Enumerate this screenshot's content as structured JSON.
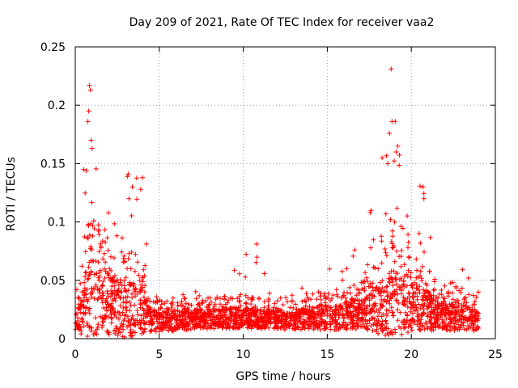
{
  "chart_data": {
    "type": "scatter",
    "title": "Day 209 of 2021, Rate Of TEC Index for receiver vaa2",
    "xlabel": "GPS time / hours",
    "ylabel": "ROTI / TECUs",
    "xlim": [
      0,
      25
    ],
    "ylim": [
      0,
      0.25
    ],
    "x_ticks": [
      0,
      5,
      10,
      15,
      20,
      25
    ],
    "x_tick_labels": [
      "0",
      "5",
      "10",
      "15",
      "20",
      "25"
    ],
    "y_ticks": [
      0,
      0.05,
      0.1,
      0.15,
      0.2,
      0.25
    ],
    "y_tick_labels": [
      "0",
      "0.05",
      "0.1",
      "0.15",
      "0.2",
      "0.25"
    ],
    "grid": true,
    "marker": "+",
    "series": [
      {
        "color": "#ff0000",
        "profile": [
          {
            "x": 0.0,
            "base": 0.015,
            "spread": 0.015,
            "max": 0.03
          },
          {
            "x": 0.5,
            "base": 0.03,
            "spread": 0.05,
            "max": 0.145
          },
          {
            "x": 0.9,
            "base": 0.035,
            "spread": 0.06,
            "max": 0.215
          },
          {
            "x": 1.5,
            "base": 0.035,
            "spread": 0.05,
            "max": 0.12
          },
          {
            "x": 2.0,
            "base": 0.03,
            "spread": 0.045,
            "max": 0.11
          },
          {
            "x": 3.0,
            "base": 0.025,
            "spread": 0.04,
            "max": 0.14
          },
          {
            "x": 4.0,
            "base": 0.025,
            "spread": 0.035,
            "max": 0.138
          },
          {
            "x": 4.5,
            "base": 0.015,
            "spread": 0.015,
            "max": 0.035
          },
          {
            "x": 6.0,
            "base": 0.015,
            "spread": 0.015,
            "max": 0.045
          },
          {
            "x": 8.0,
            "base": 0.017,
            "spread": 0.014,
            "max": 0.04
          },
          {
            "x": 9.5,
            "base": 0.018,
            "spread": 0.016,
            "max": 0.065
          },
          {
            "x": 10.8,
            "base": 0.017,
            "spread": 0.014,
            "max": 0.081
          },
          {
            "x": 12.0,
            "base": 0.016,
            "spread": 0.014,
            "max": 0.04
          },
          {
            "x": 14.0,
            "base": 0.017,
            "spread": 0.015,
            "max": 0.045
          },
          {
            "x": 15.0,
            "base": 0.018,
            "spread": 0.018,
            "max": 0.06
          },
          {
            "x": 16.5,
            "base": 0.02,
            "spread": 0.02,
            "max": 0.075
          },
          {
            "x": 17.5,
            "base": 0.022,
            "spread": 0.025,
            "max": 0.11
          },
          {
            "x": 18.8,
            "base": 0.03,
            "spread": 0.05,
            "max": 0.23
          },
          {
            "x": 19.5,
            "base": 0.03,
            "spread": 0.045,
            "max": 0.14
          },
          {
            "x": 20.7,
            "base": 0.025,
            "spread": 0.035,
            "max": 0.13
          },
          {
            "x": 21.5,
            "base": 0.02,
            "spread": 0.02,
            "max": 0.06
          },
          {
            "x": 23.0,
            "base": 0.018,
            "spread": 0.02,
            "max": 0.06
          },
          {
            "x": 24.0,
            "base": 0.015,
            "spread": 0.015,
            "max": 0.045
          }
        ],
        "notable_points": [
          {
            "x": 0.85,
            "y": 0.217
          },
          {
            "x": 0.9,
            "y": 0.213
          },
          {
            "x": 0.8,
            "y": 0.195
          },
          {
            "x": 0.75,
            "y": 0.186
          },
          {
            "x": 1.0,
            "y": 0.163
          },
          {
            "x": 0.95,
            "y": 0.17
          },
          {
            "x": 0.5,
            "y": 0.145
          },
          {
            "x": 3.15,
            "y": 0.141
          },
          {
            "x": 3.1,
            "y": 0.139
          },
          {
            "x": 4.0,
            "y": 0.138
          },
          {
            "x": 3.4,
            "y": 0.13
          },
          {
            "x": 3.2,
            "y": 0.12
          },
          {
            "x": 10.8,
            "y": 0.081
          },
          {
            "x": 18.8,
            "y": 0.231
          },
          {
            "x": 18.85,
            "y": 0.186
          },
          {
            "x": 18.7,
            "y": 0.176
          },
          {
            "x": 19.2,
            "y": 0.165
          },
          {
            "x": 19.1,
            "y": 0.16
          },
          {
            "x": 18.6,
            "y": 0.15
          },
          {
            "x": 20.7,
            "y": 0.13
          },
          {
            "x": 20.75,
            "y": 0.12
          },
          {
            "x": 17.6,
            "y": 0.11
          },
          {
            "x": 17.55,
            "y": 0.108
          }
        ]
      }
    ]
  }
}
